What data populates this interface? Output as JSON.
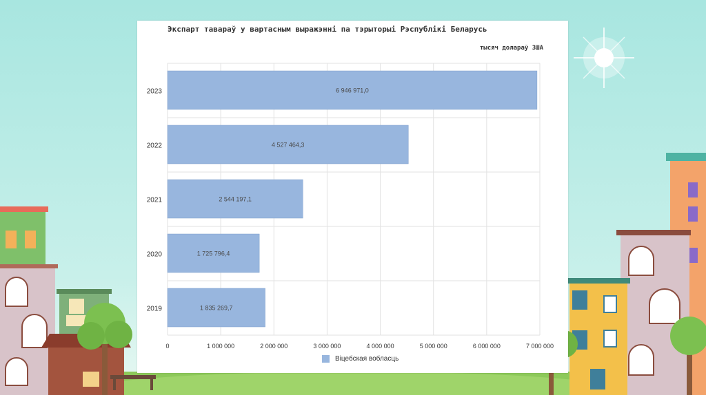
{
  "colors": {
    "bar": "#98b6de",
    "bar_stroke": "#7f9fcb",
    "grid": "#e2e2e2",
    "text": "#333333",
    "panel": "#ffffff"
  },
  "chart_data": {
    "type": "bar",
    "orientation": "horizontal",
    "title": "Экспарт тавараў у вартасным выражэнні па тэрыторыі Рэспублікі Беларусь",
    "unit_label": "тысяч долараў ЗША",
    "categories": [
      "2023",
      "2022",
      "2021",
      "2020",
      "2019"
    ],
    "series": [
      {
        "name": "Віцебская вобласць",
        "values": [
          6946971.0,
          4527464.3,
          2544197.1,
          1725796.4,
          1835269.7
        ],
        "value_labels": [
          "6 946 971,0",
          "4 527 464,3",
          "2 544 197,1",
          "1 725 796,4",
          "1 835 269,7"
        ]
      }
    ],
    "xlim": [
      0,
      7000000
    ],
    "x_ticks": [
      0,
      1000000,
      2000000,
      3000000,
      4000000,
      5000000,
      6000000,
      7000000
    ],
    "x_tick_labels": [
      "0",
      "1 000 000",
      "2 000 000",
      "3 000 000",
      "4 000 000",
      "5 000 000",
      "6 000 000",
      "7 000 000"
    ],
    "grid": true,
    "legend_position": "bottom"
  }
}
